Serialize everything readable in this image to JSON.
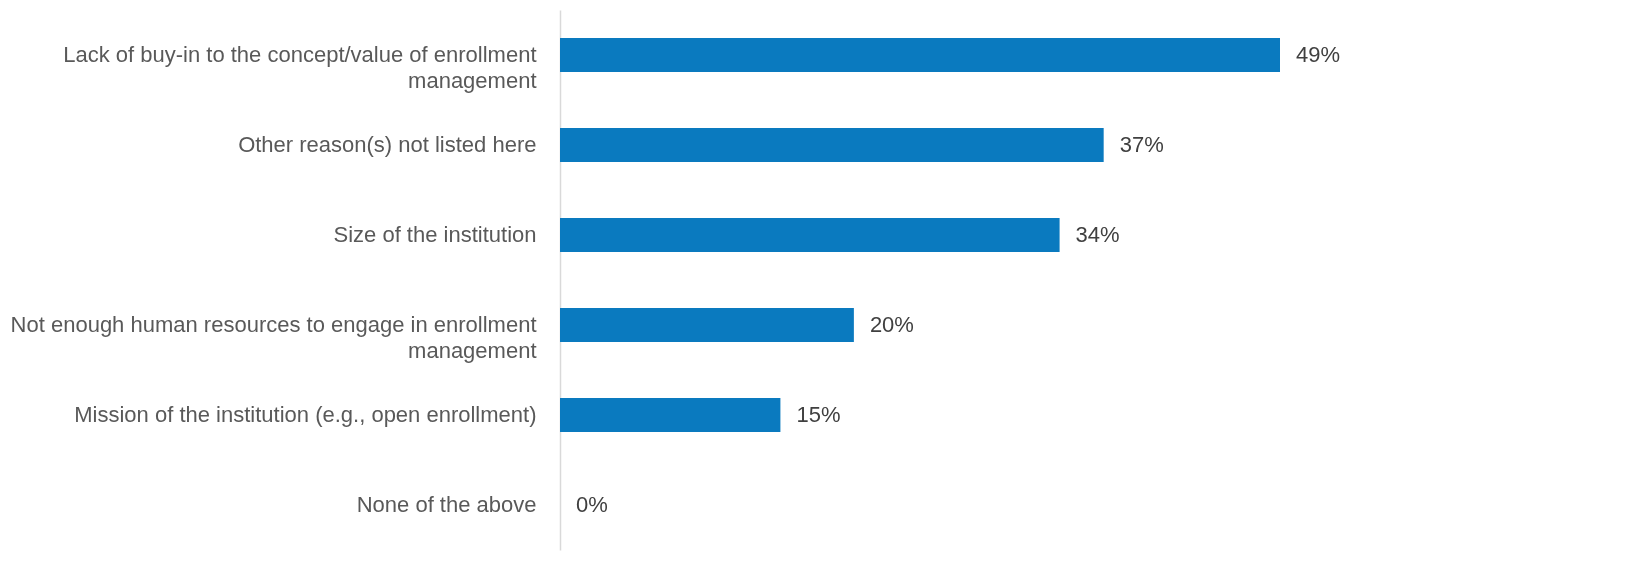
{
  "chart_data": {
    "type": "bar",
    "orientation": "horizontal",
    "categories": [
      "Lack of buy-in to the concept/value of enrollment management",
      "Other reason(s) not listed here",
      "Size of the institution",
      "Not enough human resources to engage in enrollment management",
      "Mission of the institution (e.g., open enrollment)",
      "None of the above"
    ],
    "values": [
      49,
      37,
      34,
      20,
      15,
      0
    ],
    "value_labels": [
      "49%",
      "37%",
      "34%",
      "20%",
      "15%",
      "0%"
    ],
    "color": "#0a7abf"
  }
}
